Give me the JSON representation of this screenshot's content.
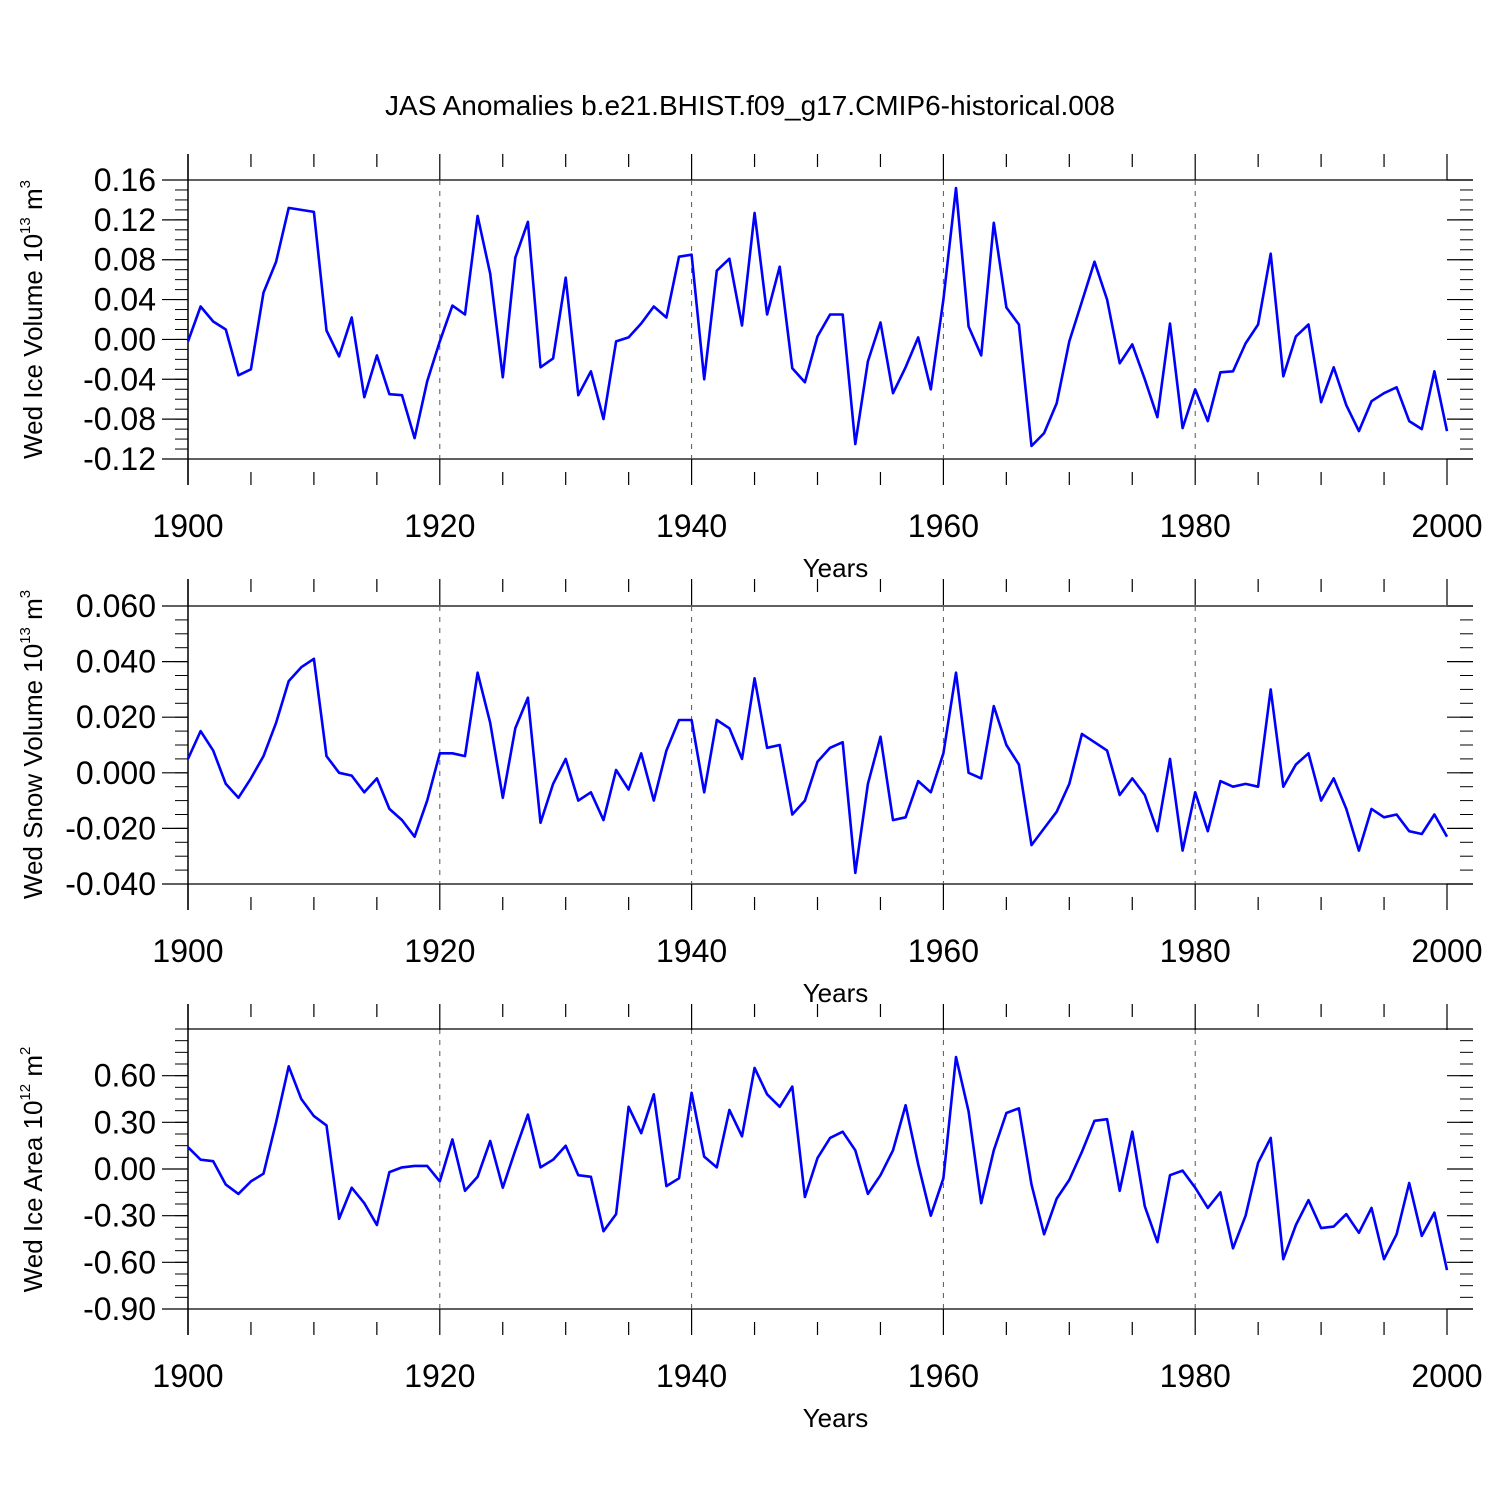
{
  "title": "JAS Anomalies b.e21.BHIST.f09_g17.CMIP6-historical.008",
  "chart_data": [
    {
      "type": "line",
      "ylabel": "Wed Ice Volume 10",
      "ylabel_exp": "13",
      "ylabel_unit": "m",
      "ylabel_unit_exp": "3",
      "xlabel": "Years",
      "xlim": [
        1900,
        2000
      ],
      "ylim": [
        -0.12,
        0.16
      ],
      "xticks": [
        1900,
        1920,
        1940,
        1960,
        1980,
        2000
      ],
      "xtick_labels": [
        "1900",
        "1920",
        "1940",
        "1960",
        "1980",
        "2000"
      ],
      "yticks": [
        -0.12,
        -0.08,
        -0.04,
        0.0,
        0.04,
        0.08,
        0.12,
        0.16
      ],
      "ytick_labels": [
        "-0.12",
        "-0.08",
        "-0.04",
        "0.00",
        "0.04",
        "0.08",
        "0.12",
        "0.16"
      ],
      "yminor": 0.01,
      "color": "#0000ff",
      "x_start": 1900,
      "values": [
        -0.002,
        0.033,
        0.018,
        0.01,
        -0.036,
        -0.03,
        0.047,
        0.078,
        0.132,
        0.13,
        0.128,
        0.009,
        -0.017,
        0.022,
        -0.058,
        -0.016,
        -0.055,
        -0.056,
        -0.099,
        -0.042,
        -0.002,
        0.034,
        0.025,
        0.124,
        0.066,
        -0.038,
        0.082,
        0.118,
        -0.028,
        -0.019,
        0.062,
        -0.056,
        -0.032,
        -0.08,
        -0.002,
        0.002,
        0.016,
        0.033,
        0.022,
        0.083,
        0.085,
        -0.04,
        0.069,
        0.081,
        0.014,
        0.127,
        0.025,
        0.073,
        -0.029,
        -0.043,
        0.003,
        0.025,
        0.025,
        -0.105,
        -0.022,
        0.017,
        -0.054,
        -0.028,
        0.002,
        -0.05,
        0.04,
        0.152,
        0.013,
        -0.016,
        0.117,
        0.032,
        0.015,
        -0.107,
        -0.094,
        -0.064,
        -0.002,
        0.038,
        0.078,
        0.04,
        -0.024,
        -0.005,
        -0.04,
        -0.078,
        0.016,
        -0.089,
        -0.05,
        -0.082,
        -0.033,
        -0.032,
        -0.004,
        0.015,
        0.086,
        -0.037,
        0.003,
        0.015,
        -0.063,
        -0.028,
        -0.066,
        -0.092,
        -0.062,
        -0.054,
        -0.048,
        -0.082,
        -0.09,
        -0.032,
        -0.092
      ]
    },
    {
      "type": "line",
      "ylabel": "Wed Snow Volume 10",
      "ylabel_exp": "13",
      "ylabel_unit": "m",
      "ylabel_unit_exp": "3",
      "xlabel": "Years",
      "xlim": [
        1900,
        2000
      ],
      "ylim": [
        -0.04,
        0.06
      ],
      "xticks": [
        1900,
        1920,
        1940,
        1960,
        1980,
        2000
      ],
      "xtick_labels": [
        "1900",
        "1920",
        "1940",
        "1960",
        "1980",
        "2000"
      ],
      "yticks": [
        -0.04,
        -0.02,
        0.0,
        0.02,
        0.04,
        0.06
      ],
      "ytick_labels": [
        "-0.040",
        "-0.020",
        "0.000",
        "0.020",
        "0.040",
        "0.060"
      ],
      "yminor": 0.005,
      "color": "#0000ff",
      "x_start": 1900,
      "values": [
        0.005,
        0.015,
        0.008,
        -0.004,
        -0.009,
        -0.002,
        0.006,
        0.018,
        0.033,
        0.038,
        0.041,
        0.006,
        0.0,
        -0.001,
        -0.007,
        -0.002,
        -0.013,
        -0.017,
        -0.023,
        -0.01,
        0.007,
        0.007,
        0.006,
        0.036,
        0.018,
        -0.009,
        0.016,
        0.027,
        -0.018,
        -0.004,
        0.005,
        -0.01,
        -0.007,
        -0.017,
        0.001,
        -0.006,
        0.007,
        -0.01,
        0.008,
        0.019,
        0.019,
        -0.007,
        0.019,
        0.016,
        0.005,
        0.034,
        0.009,
        0.01,
        -0.015,
        -0.01,
        0.004,
        0.009,
        0.011,
        -0.036,
        -0.004,
        0.013,
        -0.017,
        -0.016,
        -0.003,
        -0.007,
        0.007,
        0.036,
        0.0,
        -0.002,
        0.024,
        0.01,
        0.003,
        -0.026,
        -0.02,
        -0.014,
        -0.004,
        0.014,
        0.011,
        0.008,
        -0.008,
        -0.002,
        -0.008,
        -0.021,
        0.005,
        -0.028,
        -0.007,
        -0.021,
        -0.003,
        -0.005,
        -0.004,
        -0.005,
        0.03,
        -0.005,
        0.003,
        0.007,
        -0.01,
        -0.002,
        -0.013,
        -0.028,
        -0.013,
        -0.016,
        -0.015,
        -0.021,
        -0.022,
        -0.015,
        -0.023
      ]
    },
    {
      "type": "line",
      "ylabel": "Wed Ice Area 10",
      "ylabel_exp": "12",
      "ylabel_unit": "m",
      "ylabel_unit_exp": "2",
      "xlabel": "Years",
      "xlim": [
        1900,
        2000
      ],
      "ylim": [
        -0.9,
        0.9
      ],
      "xticks": [
        1900,
        1920,
        1940,
        1960,
        1980,
        2000
      ],
      "xtick_labels": [
        "1900",
        "1920",
        "1940",
        "1960",
        "1980",
        "2000"
      ],
      "yticks": [
        -0.9,
        -0.6,
        -0.3,
        0.0,
        0.3,
        0.6
      ],
      "ytick_labels": [
        "-0.90",
        "-0.60",
        "-0.30",
        "0.00",
        "0.30",
        "0.60"
      ],
      "yminor": 0.075,
      "color": "#0000ff",
      "x_start": 1900,
      "values": [
        0.14,
        0.06,
        0.05,
        -0.1,
        -0.16,
        -0.08,
        -0.03,
        0.3,
        0.66,
        0.45,
        0.34,
        0.28,
        -0.32,
        -0.12,
        -0.22,
        -0.36,
        -0.02,
        0.01,
        0.02,
        0.02,
        -0.08,
        0.19,
        -0.14,
        -0.05,
        0.18,
        -0.12,
        0.12,
        0.35,
        0.01,
        0.06,
        0.15,
        -0.04,
        -0.05,
        -0.4,
        -0.29,
        0.4,
        0.23,
        0.48,
        -0.11,
        -0.06,
        0.49,
        0.08,
        0.01,
        0.38,
        0.21,
        0.65,
        0.48,
        0.4,
        0.53,
        -0.18,
        0.07,
        0.2,
        0.24,
        0.12,
        -0.16,
        -0.04,
        0.12,
        0.41,
        0.03,
        -0.3,
        -0.06,
        0.72,
        0.37,
        -0.22,
        0.12,
        0.36,
        0.39,
        -0.1,
        -0.42,
        -0.19,
        -0.07,
        0.11,
        0.31,
        0.32,
        -0.14,
        0.24,
        -0.24,
        -0.47,
        -0.04,
        -0.01,
        -0.12,
        -0.25,
        -0.15,
        -0.51,
        -0.3,
        0.04,
        0.2,
        -0.58,
        -0.36,
        -0.2,
        -0.38,
        -0.37,
        -0.29,
        -0.41,
        -0.25,
        -0.58,
        -0.42,
        -0.09,
        -0.43,
        -0.28,
        -0.65
      ]
    }
  ]
}
